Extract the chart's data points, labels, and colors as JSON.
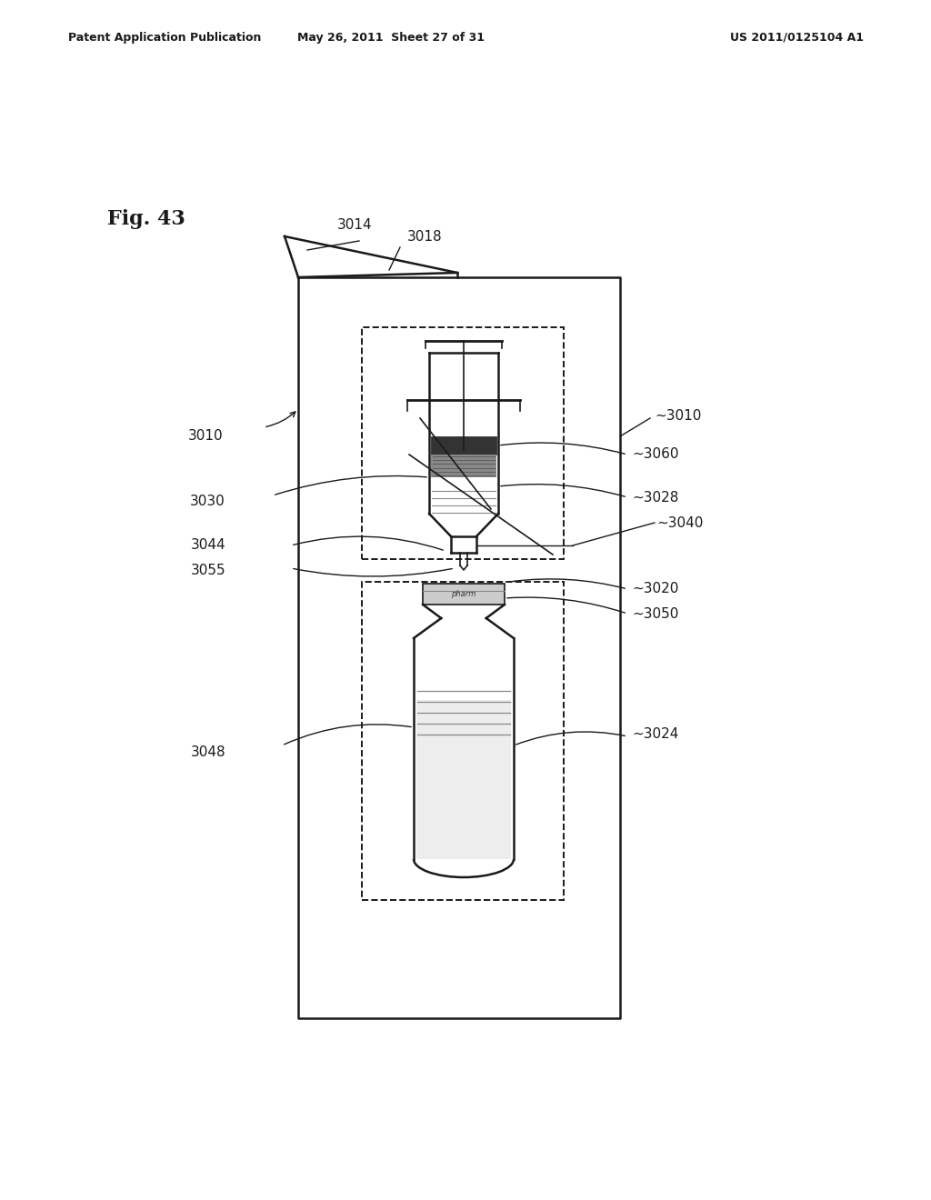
{
  "title_left": "Patent Application Publication",
  "title_mid": "May 26, 2011  Sheet 27 of 31",
  "title_right": "US 2011/0125104 A1",
  "fig_label": "Fig. 43",
  "bg_color": "#ffffff",
  "line_color": "#1a1a1a"
}
